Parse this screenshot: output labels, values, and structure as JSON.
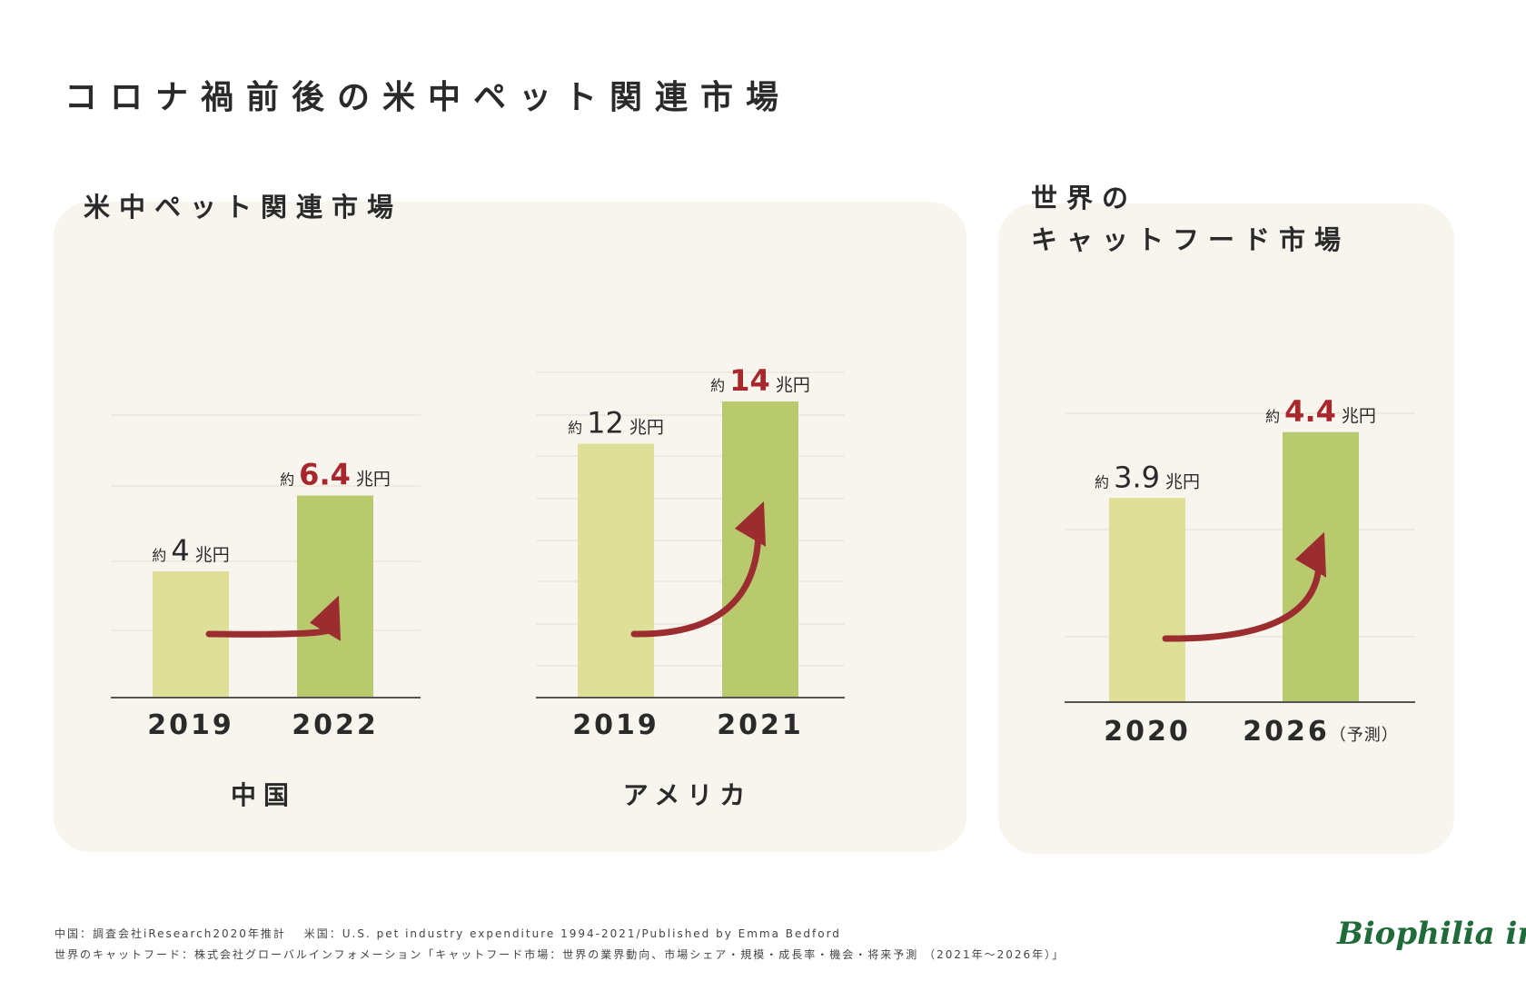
{
  "title": "コロナ禍前後の米中ペット関連市場",
  "sections": {
    "left_title": "米中ペット関連市場",
    "right_title_line1": "世界の",
    "right_title_line2": "キャットフード市場"
  },
  "colors": {
    "panel": "#f8f5ee",
    "bar_before": "#dde096",
    "bar_after": "#b9c96e",
    "arrow": "#9b2c30",
    "highlight": "#a8272c"
  },
  "chart_data": [
    {
      "type": "bar",
      "title": "中国",
      "categories": [
        "2019",
        "2022"
      ],
      "values": [
        4,
        6.4
      ],
      "units": "兆円",
      "prefix": "約",
      "value_labels": [
        "4",
        "6.4"
      ],
      "highlight": [
        false,
        true
      ],
      "ylim": [
        0,
        8
      ]
    },
    {
      "type": "bar",
      "title": "アメリカ",
      "categories": [
        "2019",
        "2021"
      ],
      "values": [
        12,
        14
      ],
      "units": "兆円",
      "prefix": "約",
      "value_labels": [
        "12",
        "14"
      ],
      "highlight": [
        false,
        true
      ],
      "ylim": [
        0,
        15.5
      ]
    },
    {
      "type": "bar",
      "title": "",
      "categories": [
        "2020",
        "2026"
      ],
      "category_suffix": [
        "",
        "（予測）"
      ],
      "values": [
        3.9,
        4.4
      ],
      "units": "兆円",
      "prefix": "約",
      "value_labels": [
        "3.9",
        "4.4"
      ],
      "highlight": [
        false,
        true
      ],
      "ylim": [
        2.35,
        4.75
      ]
    }
  ],
  "footnotes": {
    "line1": "中国：調査会社iResearch2020年推計　 米国：U.S. pet industry expenditure 1994-2021/Published by Emma Bedford",
    "line2": "世界のキャットフード：株式会社グローバルインフォメーション「キャットフード市場：世界の業界動向、市場シェア・規模・成長率・機会・将来予測 （2021年～2026年）」"
  },
  "logo": "Biophilia inc."
}
